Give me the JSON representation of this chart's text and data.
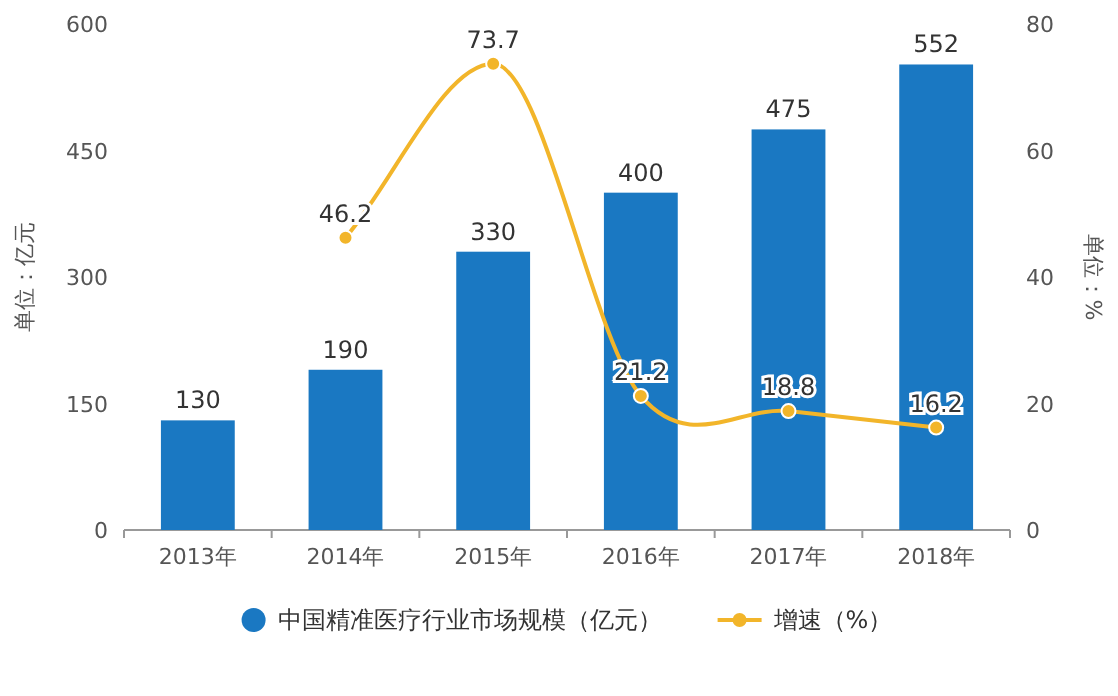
{
  "chart_data": {
    "type": "bar",
    "categories": [
      "2013年",
      "2014年",
      "2015年",
      "2016年",
      "2017年",
      "2018年"
    ],
    "series": [
      {
        "name": "中国精准医疗行业市场规模（亿元）",
        "color": "#1a78c2",
        "values": [
          130,
          190,
          330,
          400,
          475,
          552
        ]
      },
      {
        "name": "增速（%）",
        "type": "line",
        "axis": "y2",
        "color": "#f2b52a",
        "values": [
          null,
          46.2,
          73.7,
          21.2,
          18.8,
          16.2
        ]
      }
    ],
    "ylabel": "单位：亿元",
    "y2label": "单位：%",
    "ylim": [
      0,
      600
    ],
    "yticks": [
      0,
      150,
      300,
      450,
      600
    ],
    "y2lim": [
      0,
      80
    ],
    "y2ticks": [
      0,
      20,
      40,
      60,
      80
    ],
    "data_labels": true,
    "legend": "bottom",
    "marker": "circle",
    "grid": false
  }
}
